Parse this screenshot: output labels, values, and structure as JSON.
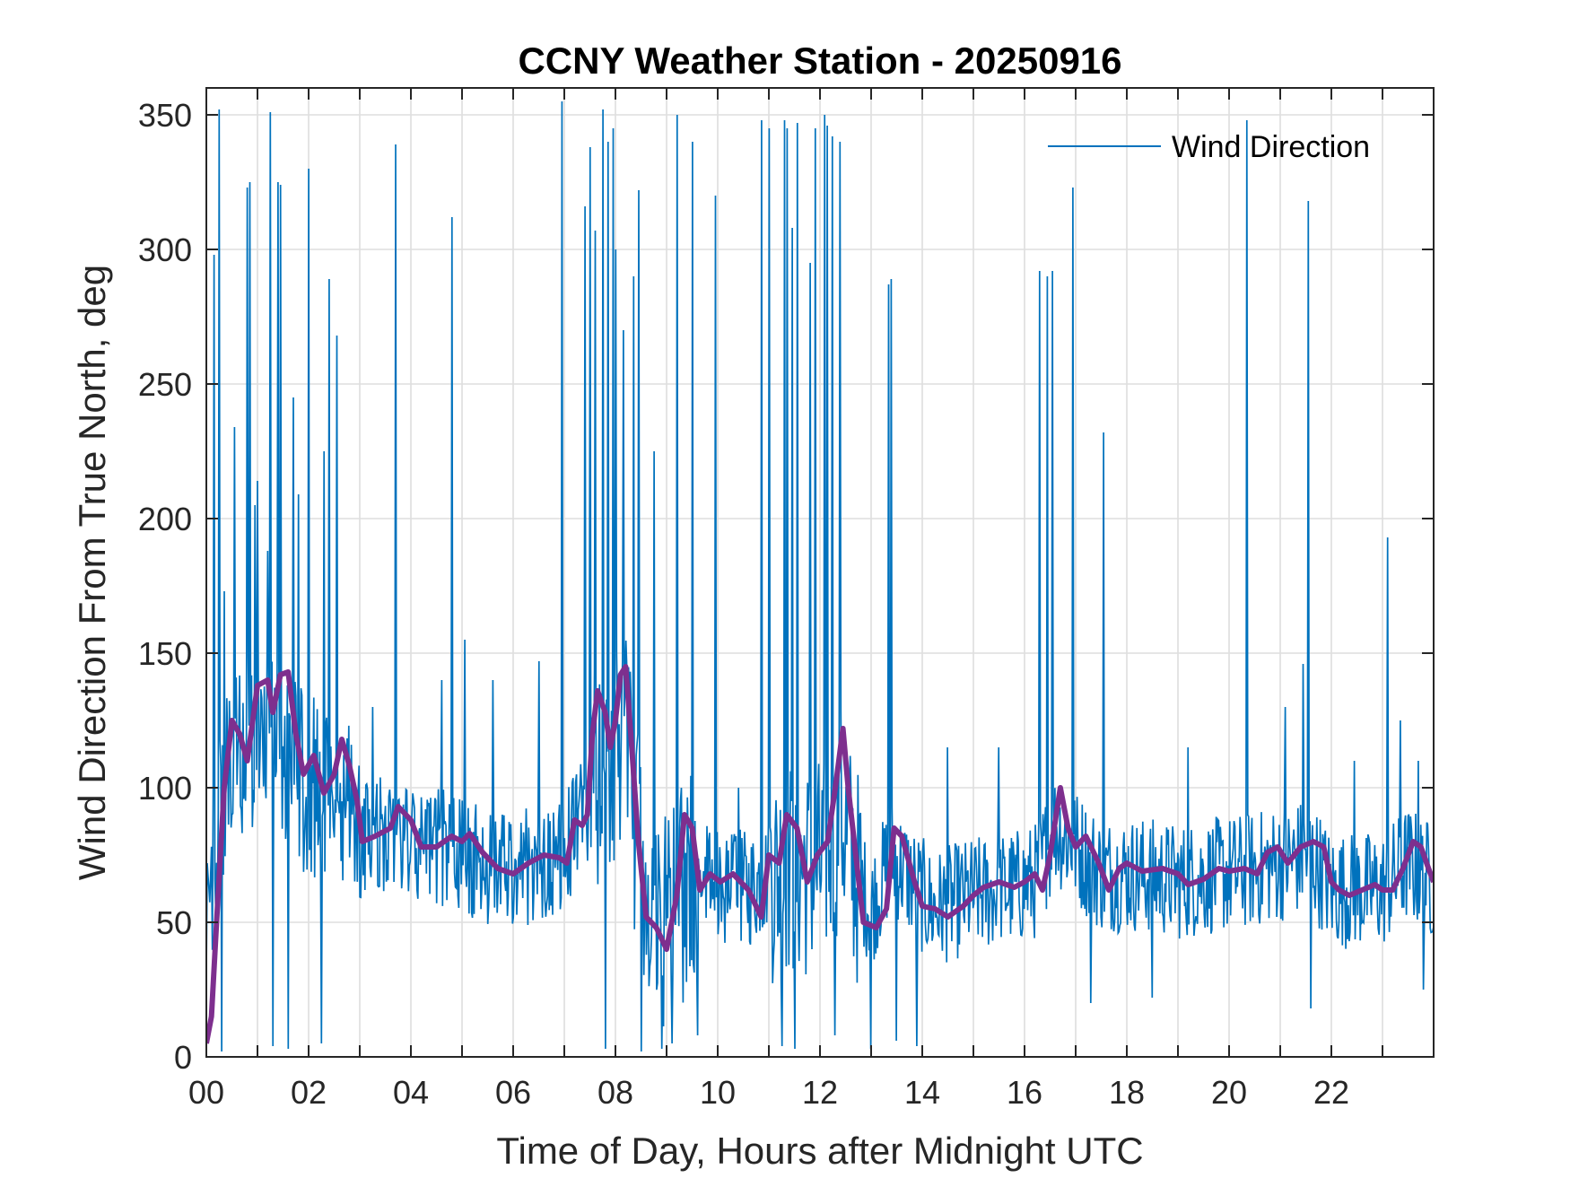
{
  "chart_data": {
    "type": "line",
    "title": "CCNY Weather Station - 20250916",
    "xlabel": "Time of Day, Hours after Midnight UTC",
    "ylabel": "Wind Direction From True North, deg",
    "xlim": [
      0,
      24
    ],
    "ylim": [
      0,
      360
    ],
    "x_ticks": [
      0,
      2,
      4,
      6,
      8,
      10,
      12,
      14,
      16,
      18,
      20,
      22
    ],
    "x_tick_labels": [
      "00",
      "02",
      "04",
      "06",
      "08",
      "10",
      "12",
      "14",
      "16",
      "18",
      "20",
      "22"
    ],
    "y_ticks": [
      0,
      50,
      100,
      150,
      200,
      250,
      300,
      350
    ],
    "y_tick_labels": [
      "0",
      "50",
      "100",
      "150",
      "200",
      "250",
      "300",
      "350"
    ],
    "grid": true,
    "legend_position": "top-right",
    "series": [
      {
        "name": "Wind Direction",
        "color": "#0072BD",
        "baseline": [
          [
            0,
            40
          ],
          [
            0.2,
            90
          ],
          [
            0.6,
            110
          ],
          [
            1.0,
            120
          ],
          [
            1.6,
            110
          ],
          [
            2.0,
            100
          ],
          [
            2.6,
            100
          ],
          [
            3.0,
            78
          ],
          [
            3.6,
            85
          ],
          [
            4.0,
            77
          ],
          [
            4.6,
            78
          ],
          [
            5.0,
            75
          ],
          [
            5.6,
            70
          ],
          [
            6.0,
            70
          ],
          [
            6.6,
            72
          ],
          [
            7.0,
            75
          ],
          [
            7.4,
            95
          ],
          [
            7.8,
            110
          ],
          [
            8.2,
            115
          ],
          [
            8.5,
            70
          ],
          [
            8.8,
            45
          ],
          [
            9.1,
            55
          ],
          [
            9.5,
            65
          ],
          [
            10.0,
            65
          ],
          [
            10.6,
            62
          ],
          [
            11.0,
            68
          ],
          [
            11.6,
            70
          ],
          [
            12.0,
            70
          ],
          [
            12.4,
            90
          ],
          [
            12.7,
            68
          ],
          [
            13.0,
            55
          ],
          [
            13.4,
            75
          ],
          [
            13.8,
            65
          ],
          [
            14.2,
            55
          ],
          [
            15.0,
            60
          ],
          [
            15.6,
            62
          ],
          [
            16.2,
            65
          ],
          [
            16.6,
            85
          ],
          [
            17.0,
            78
          ],
          [
            17.5,
            68
          ],
          [
            18.0,
            68
          ],
          [
            18.6,
            67
          ],
          [
            19.0,
            65
          ],
          [
            19.6,
            67
          ],
          [
            20.0,
            68
          ],
          [
            20.6,
            70
          ],
          [
            21.0,
            72
          ],
          [
            21.6,
            75
          ],
          [
            22.0,
            62
          ],
          [
            22.6,
            62
          ],
          [
            23.0,
            62
          ],
          [
            23.5,
            72
          ],
          [
            24,
            65
          ]
        ],
        "spikes": [
          [
            0.15,
            298
          ],
          [
            0.25,
            352
          ],
          [
            0.3,
            188
          ],
          [
            0.35,
            173
          ],
          [
            0.55,
            234
          ],
          [
            0.8,
            323
          ],
          [
            0.85,
            325
          ],
          [
            0.95,
            205
          ],
          [
            1.0,
            214
          ],
          [
            1.2,
            188
          ],
          [
            1.25,
            351
          ],
          [
            1.4,
            325
          ],
          [
            1.45,
            324
          ],
          [
            1.7,
            245
          ],
          [
            1.8,
            209
          ],
          [
            2.0,
            330
          ],
          [
            2.3,
            225
          ],
          [
            2.4,
            289
          ],
          [
            2.55,
            268
          ],
          [
            3.25,
            130
          ],
          [
            3.7,
            339
          ],
          [
            4.6,
            140
          ],
          [
            4.8,
            312
          ],
          [
            5.05,
            155
          ],
          [
            5.6,
            140
          ],
          [
            6.5,
            147
          ],
          [
            6.95,
            355
          ],
          [
            7.4,
            316
          ],
          [
            7.5,
            338
          ],
          [
            7.6,
            307
          ],
          [
            7.75,
            352
          ],
          [
            7.8,
            355
          ],
          [
            7.85,
            340
          ],
          [
            7.95,
            345
          ],
          [
            8.0,
            300
          ],
          [
            8.15,
            270
          ],
          [
            8.35,
            290
          ],
          [
            8.45,
            322
          ],
          [
            8.75,
            225
          ],
          [
            8.9,
            352
          ],
          [
            9.2,
            350
          ],
          [
            9.5,
            340
          ],
          [
            9.95,
            320
          ],
          [
            10.4,
            100
          ],
          [
            10.85,
            348
          ],
          [
            11.0,
            345
          ],
          [
            11.25,
            320
          ],
          [
            11.3,
            348
          ],
          [
            11.35,
            345
          ],
          [
            11.45,
            308
          ],
          [
            11.55,
            347
          ],
          [
            11.8,
            295
          ],
          [
            11.9,
            345
          ],
          [
            12.1,
            350
          ],
          [
            12.15,
            346
          ],
          [
            12.25,
            342
          ],
          [
            12.4,
            340
          ],
          [
            13.35,
            287
          ],
          [
            13.4,
            289
          ],
          [
            14.5,
            115
          ],
          [
            15.5,
            115
          ],
          [
            16.3,
            292
          ],
          [
            16.45,
            290
          ],
          [
            16.55,
            292
          ],
          [
            16.95,
            323
          ],
          [
            17.55,
            232
          ],
          [
            19.2,
            115
          ],
          [
            20.35,
            348
          ],
          [
            21.1,
            130
          ],
          [
            21.45,
            146
          ],
          [
            21.55,
            318
          ],
          [
            22.45,
            110
          ],
          [
            23.1,
            193
          ],
          [
            23.35,
            125
          ],
          [
            23.7,
            110
          ]
        ],
        "dips": [
          [
            0.3,
            2
          ],
          [
            1.3,
            4
          ],
          [
            1.6,
            3
          ],
          [
            2.25,
            5
          ],
          [
            7.8,
            3
          ],
          [
            8.5,
            2
          ],
          [
            8.9,
            3
          ],
          [
            9.1,
            5
          ],
          [
            9.6,
            8
          ],
          [
            11.25,
            4
          ],
          [
            11.5,
            3
          ],
          [
            12.3,
            8
          ],
          [
            13.0,
            3
          ],
          [
            13.5,
            6
          ],
          [
            13.9,
            4
          ],
          [
            17.3,
            20
          ],
          [
            18.5,
            22
          ],
          [
            21.6,
            18
          ],
          [
            23.8,
            25
          ]
        ]
      },
      {
        "name": "",
        "color": "#7E2F8E",
        "values": [
          [
            0,
            5
          ],
          [
            0.1,
            15
          ],
          [
            0.2,
            50
          ],
          [
            0.35,
            100
          ],
          [
            0.5,
            125
          ],
          [
            0.65,
            120
          ],
          [
            0.8,
            110
          ],
          [
            1.0,
            138
          ],
          [
            1.2,
            140
          ],
          [
            1.3,
            128
          ],
          [
            1.45,
            142
          ],
          [
            1.6,
            143
          ],
          [
            1.75,
            120
          ],
          [
            1.9,
            105
          ],
          [
            2.1,
            112
          ],
          [
            2.3,
            98
          ],
          [
            2.5,
            105
          ],
          [
            2.65,
            118
          ],
          [
            2.8,
            108
          ],
          [
            2.95,
            95
          ],
          [
            3.05,
            80
          ],
          [
            3.3,
            82
          ],
          [
            3.6,
            85
          ],
          [
            3.75,
            93
          ],
          [
            4.0,
            88
          ],
          [
            4.2,
            78
          ],
          [
            4.5,
            78
          ],
          [
            4.8,
            82
          ],
          [
            5.0,
            80
          ],
          [
            5.15,
            83
          ],
          [
            5.4,
            76
          ],
          [
            5.7,
            70
          ],
          [
            6.0,
            68
          ],
          [
            6.3,
            72
          ],
          [
            6.6,
            75
          ],
          [
            6.9,
            74
          ],
          [
            7.05,
            72
          ],
          [
            7.2,
            88
          ],
          [
            7.35,
            86
          ],
          [
            7.45,
            90
          ],
          [
            7.55,
            120
          ],
          [
            7.65,
            136
          ],
          [
            7.8,
            128
          ],
          [
            7.9,
            115
          ],
          [
            8.0,
            125
          ],
          [
            8.1,
            142
          ],
          [
            8.2,
            145
          ],
          [
            8.3,
            120
          ],
          [
            8.45,
            80
          ],
          [
            8.6,
            52
          ],
          [
            8.8,
            48
          ],
          [
            9.0,
            40
          ],
          [
            9.2,
            60
          ],
          [
            9.35,
            90
          ],
          [
            9.5,
            85
          ],
          [
            9.65,
            62
          ],
          [
            9.85,
            68
          ],
          [
            10.05,
            65
          ],
          [
            10.3,
            68
          ],
          [
            10.6,
            62
          ],
          [
            10.85,
            52
          ],
          [
            11.0,
            75
          ],
          [
            11.2,
            72
          ],
          [
            11.35,
            90
          ],
          [
            11.55,
            85
          ],
          [
            11.75,
            65
          ],
          [
            11.95,
            75
          ],
          [
            12.15,
            80
          ],
          [
            12.3,
            100
          ],
          [
            12.45,
            122
          ],
          [
            12.55,
            100
          ],
          [
            12.7,
            75
          ],
          [
            12.85,
            50
          ],
          [
            13.1,
            48
          ],
          [
            13.3,
            55
          ],
          [
            13.45,
            85
          ],
          [
            13.6,
            82
          ],
          [
            13.85,
            65
          ],
          [
            14.0,
            56
          ],
          [
            14.25,
            55
          ],
          [
            14.5,
            52
          ],
          [
            14.8,
            56
          ],
          [
            15.0,
            60
          ],
          [
            15.2,
            63
          ],
          [
            15.5,
            65
          ],
          [
            15.8,
            63
          ],
          [
            16.0,
            65
          ],
          [
            16.2,
            68
          ],
          [
            16.35,
            62
          ],
          [
            16.5,
            75
          ],
          [
            16.7,
            100
          ],
          [
            16.85,
            85
          ],
          [
            17.0,
            78
          ],
          [
            17.2,
            82
          ],
          [
            17.45,
            72
          ],
          [
            17.65,
            62
          ],
          [
            17.85,
            70
          ],
          [
            18.0,
            72
          ],
          [
            18.3,
            69
          ],
          [
            18.7,
            70
          ],
          [
            19.0,
            68
          ],
          [
            19.2,
            64
          ],
          [
            19.5,
            66
          ],
          [
            19.8,
            70
          ],
          [
            20.0,
            69
          ],
          [
            20.3,
            70
          ],
          [
            20.55,
            68
          ],
          [
            20.75,
            76
          ],
          [
            20.95,
            78
          ],
          [
            21.15,
            72
          ],
          [
            21.4,
            78
          ],
          [
            21.65,
            80
          ],
          [
            21.85,
            78
          ],
          [
            22.0,
            65
          ],
          [
            22.15,
            62
          ],
          [
            22.35,
            60
          ],
          [
            22.6,
            62
          ],
          [
            22.85,
            64
          ],
          [
            23.0,
            62
          ],
          [
            23.2,
            62
          ],
          [
            23.4,
            70
          ],
          [
            23.6,
            80
          ],
          [
            23.75,
            78
          ],
          [
            23.9,
            70
          ],
          [
            24.0,
            65
          ]
        ]
      }
    ]
  }
}
